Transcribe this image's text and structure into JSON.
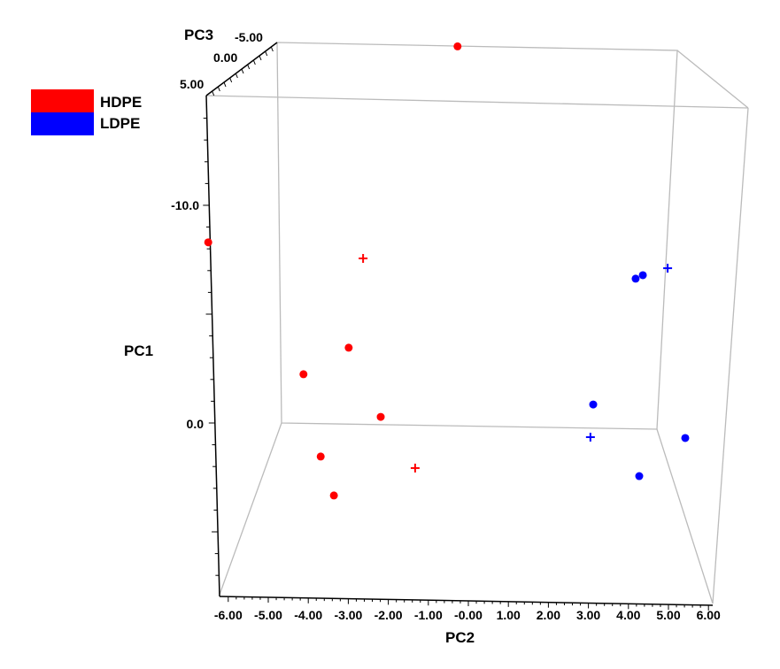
{
  "chart_data": {
    "type": "scatter",
    "projection": "3d",
    "xlabel": "PC2",
    "ylabel": "PC1",
    "zlabel": "PC3",
    "x_ticks": [
      "-6.00",
      "-5.00",
      "-4.00",
      "-3.00",
      "-2.00",
      "-1.00",
      "-0.00",
      "1.00",
      "2.00",
      "3.00",
      "4.00",
      "5.00",
      "6.00"
    ],
    "x_tick_values": [
      -6,
      -5,
      -4,
      -3,
      -2,
      -1,
      0,
      1,
      2,
      3,
      4,
      5,
      6
    ],
    "y_ticks": [
      "-10.0",
      "0.0"
    ],
    "y_tick_values": [
      -10,
      0
    ],
    "z_ticks": [
      "5.00",
      "0.00",
      "-5.00"
    ],
    "xlim": [
      -6,
      6
    ],
    "ylim_reversed": true,
    "legend": {
      "position": "top-left",
      "entries": [
        {
          "name": "HDPE",
          "color": "#ff0000"
        },
        {
          "name": "LDPE",
          "color": "#0000ff"
        }
      ]
    },
    "series": [
      {
        "name": "HDPE",
        "color": "#ff0000",
        "points": [
          {
            "pc2": -6.5,
            "pc1": -8.3,
            "marker": "dot"
          },
          {
            "pc2": -0.27,
            "pc1": -17.3,
            "marker": "dot"
          },
          {
            "pc2": -2.99,
            "pc1": -3.46,
            "marker": "dot"
          },
          {
            "pc2": -4.12,
            "pc1": -2.24,
            "marker": "dot"
          },
          {
            "pc2": -2.19,
            "pc1": -0.28,
            "marker": "dot"
          },
          {
            "pc2": -3.69,
            "pc1": 1.54,
            "marker": "dot"
          },
          {
            "pc2": -3.36,
            "pc1": 3.33,
            "marker": "dot"
          },
          {
            "pc2": -2.63,
            "pc1": -7.56,
            "marker": "plus"
          },
          {
            "pc2": -1.33,
            "pc1": 2.07,
            "marker": "plus"
          }
        ]
      },
      {
        "name": "LDPE",
        "color": "#0000ff",
        "points": [
          {
            "pc2": 4.18,
            "pc1": -6.63,
            "marker": "dot"
          },
          {
            "pc2": 4.36,
            "pc1": -6.79,
            "marker": "dot"
          },
          {
            "pc2": 3.12,
            "pc1": -0.85,
            "marker": "dot"
          },
          {
            "pc2": 5.42,
            "pc1": 0.69,
            "marker": "dot"
          },
          {
            "pc2": 4.27,
            "pc1": 2.44,
            "marker": "dot"
          },
          {
            "pc2": 4.98,
            "pc1": -7.11,
            "marker": "plus"
          },
          {
            "pc2": 3.05,
            "pc1": 0.65,
            "marker": "plus"
          }
        ]
      }
    ]
  }
}
